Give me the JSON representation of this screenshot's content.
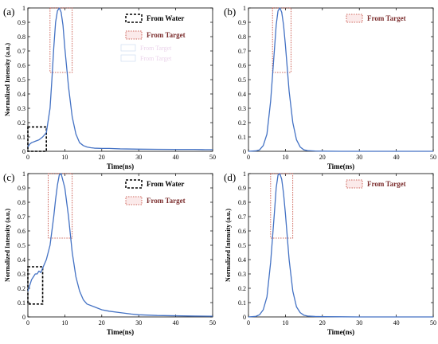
{
  "figure": {
    "panel_labels": [
      "(a)",
      "(b)",
      "(c)",
      "(d)"
    ]
  },
  "colors": {
    "curve": "#4472c4",
    "axis": "#000000",
    "target_box": "#c0392b",
    "water_box": "#000000",
    "legend_text_target": "#7b2d2d"
  },
  "chart_data": [
    {
      "type": "line",
      "panel": "(a)",
      "xlabel": "Time(ns)",
      "ylabel": "Normalized Intensity (a.u.)",
      "xlim": [
        0,
        50
      ],
      "ylim": [
        0,
        1
      ],
      "xticks": [
        "0",
        "10",
        "20",
        "30",
        "40",
        "50"
      ],
      "yticks": [
        "0",
        "0.1",
        "0.2",
        "0.3",
        "0.4",
        "0.5",
        "0.6",
        "0.7",
        "0.8",
        "0.9",
        "1"
      ],
      "legend": [
        {
          "label": "From Water",
          "style": "water"
        },
        {
          "label": "From Target",
          "style": "target"
        }
      ],
      "legend_faint": [
        "From Target",
        "From Target"
      ],
      "boxes": [
        {
          "style": "water",
          "x": [
            0,
            5
          ],
          "y": [
            0,
            0.17
          ]
        },
        {
          "style": "target",
          "x": [
            6,
            12
          ],
          "y": [
            0.55,
            1.0
          ]
        }
      ],
      "series": [
        {
          "x": [
            0,
            0.5,
            1,
            2,
            3,
            4,
            5,
            6,
            6.5,
            7,
            7.5,
            8,
            8.5,
            9,
            9.5,
            10,
            11,
            12,
            13,
            14,
            15,
            16,
            17,
            18,
            20,
            22,
            25,
            30,
            35,
            40,
            45,
            48,
            50
          ],
          "y": [
            0.03,
            0.05,
            0.06,
            0.07,
            0.08,
            0.1,
            0.13,
            0.3,
            0.5,
            0.72,
            0.9,
            0.98,
            1.0,
            0.97,
            0.88,
            0.72,
            0.45,
            0.24,
            0.12,
            0.06,
            0.04,
            0.03,
            0.025,
            0.022,
            0.02,
            0.02,
            0.017,
            0.015,
            0.014,
            0.013,
            0.013,
            0.012,
            0.012
          ]
        }
      ]
    },
    {
      "type": "line",
      "panel": "(b)",
      "xlabel": "Time(ns)",
      "ylabel": "",
      "xlim": [
        0,
        50
      ],
      "ylim": [
        0,
        1
      ],
      "xticks": [
        "0",
        "10",
        "20",
        "30",
        "40",
        "50"
      ],
      "yticks": [
        "0",
        "0.1",
        "0.2",
        "0.3",
        "0.4",
        "0.5",
        "0.6",
        "0.7",
        "0.8",
        "0.9",
        "1"
      ],
      "legend": [
        {
          "label": "From Target",
          "style": "target"
        }
      ],
      "boxes": [
        {
          "style": "target",
          "x": [
            6.5,
            11.5
          ],
          "y": [
            0.55,
            1.0
          ]
        }
      ],
      "series": [
        {
          "x": [
            0,
            2,
            3,
            4,
            5,
            6,
            7,
            7.5,
            8,
            8.5,
            9,
            9.5,
            10,
            10.5,
            11,
            12,
            13,
            14,
            15,
            16,
            18,
            20,
            25,
            30,
            40,
            50
          ],
          "y": [
            0.0,
            0.003,
            0.01,
            0.04,
            0.12,
            0.35,
            0.7,
            0.88,
            0.98,
            1.0,
            0.97,
            0.88,
            0.74,
            0.58,
            0.42,
            0.2,
            0.08,
            0.03,
            0.01,
            0.005,
            0.002,
            0.001,
            0,
            0,
            0,
            0
          ]
        }
      ]
    },
    {
      "type": "line",
      "panel": "(c)",
      "xlabel": "Time(ns)",
      "ylabel": "Normalized Intensity (a.u.)",
      "xlim": [
        0,
        50
      ],
      "ylim": [
        0,
        1
      ],
      "xticks": [
        "0",
        "10",
        "20",
        "30",
        "40",
        "50"
      ],
      "yticks": [
        "0",
        "0.1",
        "0.2",
        "0.3",
        "0.4",
        "0.5",
        "0.6",
        "0.7",
        "0.8",
        "0.9",
        "1"
      ],
      "legend": [
        {
          "label": "From Water",
          "style": "water"
        },
        {
          "label": "From Target",
          "style": "target"
        }
      ],
      "boxes": [
        {
          "style": "water",
          "x": [
            0,
            4
          ],
          "y": [
            0.09,
            0.35
          ]
        },
        {
          "style": "target",
          "x": [
            5.5,
            12
          ],
          "y": [
            0.55,
            1.0
          ]
        }
      ],
      "series": [
        {
          "x": [
            0,
            0.5,
            1,
            1.5,
            2,
            2.5,
            3,
            3.5,
            4,
            5,
            6,
            7,
            7.5,
            8,
            8.5,
            9,
            10,
            11,
            12,
            13,
            14,
            15,
            16,
            18,
            20,
            22,
            25,
            28,
            30,
            35,
            40,
            45,
            50
          ],
          "y": [
            0.18,
            0.22,
            0.26,
            0.28,
            0.3,
            0.3,
            0.32,
            0.31,
            0.34,
            0.4,
            0.5,
            0.7,
            0.82,
            0.92,
            0.99,
            1.0,
            0.9,
            0.7,
            0.45,
            0.28,
            0.18,
            0.12,
            0.09,
            0.07,
            0.05,
            0.04,
            0.03,
            0.02,
            0.015,
            0.01,
            0.008,
            0.006,
            0.005
          ]
        }
      ]
    },
    {
      "type": "line",
      "panel": "(d)",
      "xlabel": "Time(ns)",
      "ylabel": "Normalized Intensity (a.u.)",
      "xlim": [
        0,
        50
      ],
      "ylim": [
        0,
        1
      ],
      "xticks": [
        "0",
        "10",
        "20",
        "30",
        "40",
        "50"
      ],
      "yticks": [
        "0",
        "0.1",
        "0.2",
        "0.3",
        "0.4",
        "0.5",
        "0.6",
        "0.7",
        "0.8",
        "0.9",
        "1"
      ],
      "legend": [
        {
          "label": "From Target",
          "style": "target"
        }
      ],
      "boxes": [
        {
          "style": "target",
          "x": [
            6,
            12
          ],
          "y": [
            0.55,
            1.0
          ]
        }
      ],
      "series": [
        {
          "x": [
            0,
            2,
            3,
            4,
            5,
            6,
            7,
            7.5,
            8,
            8.5,
            9,
            9.5,
            10,
            10.5,
            11,
            12,
            13,
            14,
            15,
            16,
            18,
            20,
            25,
            30,
            40,
            50
          ],
          "y": [
            0.0,
            0.004,
            0.015,
            0.05,
            0.14,
            0.38,
            0.72,
            0.9,
            0.99,
            1.0,
            0.96,
            0.86,
            0.72,
            0.56,
            0.4,
            0.18,
            0.07,
            0.03,
            0.012,
            0.006,
            0.003,
            0.002,
            0.001,
            0,
            0,
            0
          ]
        }
      ]
    }
  ]
}
